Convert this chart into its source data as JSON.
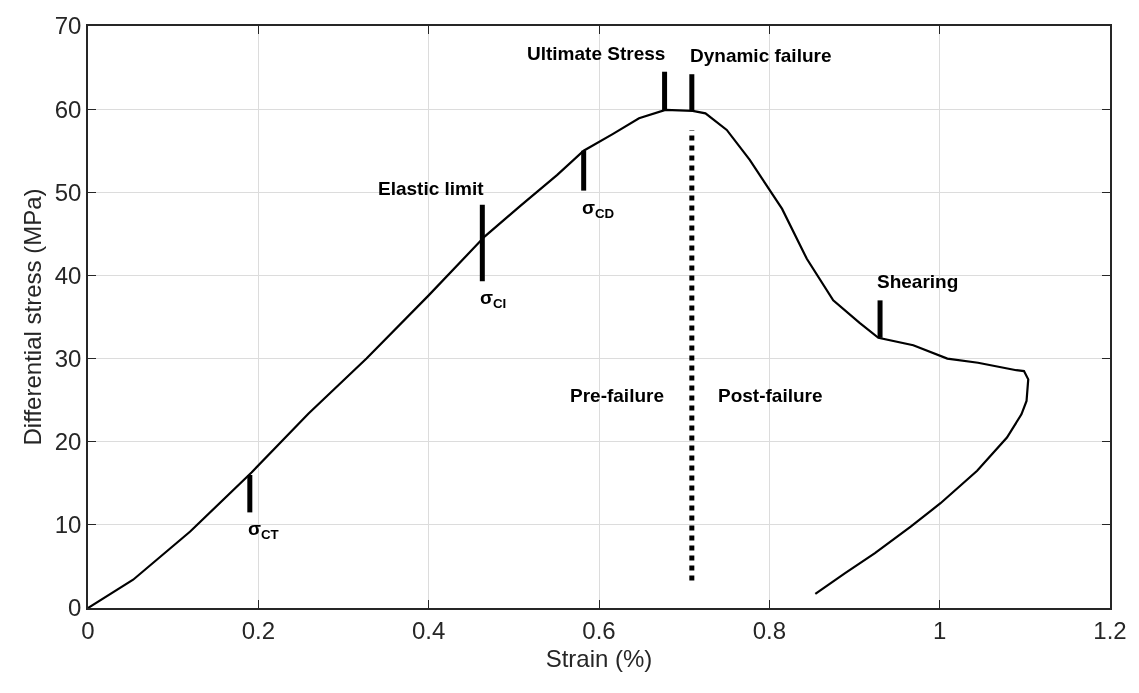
{
  "chart_data": {
    "type": "line",
    "xlabel": "Strain (%)",
    "ylabel": "Differential stress (MPa)",
    "xlim": [
      0,
      1.2
    ],
    "xticks": [
      0,
      0.2,
      0.4,
      0.6,
      0.8,
      1,
      1.2
    ],
    "ylim": [
      0,
      70
    ],
    "yticks": [
      0,
      10,
      20,
      30,
      40,
      50,
      60,
      70
    ],
    "grid": true,
    "marker": "none",
    "series": [
      {
        "color": "#000000",
        "line_style": "solid",
        "x": [
          0,
          0.053,
          0.12,
          0.192,
          0.259,
          0.327,
          0.4,
          0.466,
          0.508,
          0.551,
          0.582,
          0.616,
          0.647,
          0.678,
          0.71,
          0.725,
          0.75,
          0.777,
          0.815,
          0.844,
          0.875,
          0.906,
          0.928,
          0.969,
          1.009,
          1.045,
          1.09,
          1.099,
          1.104,
          1.102,
          1.096,
          1.079,
          1.044,
          1.001,
          0.966,
          0.924,
          0.889,
          0.854
        ],
        "values": [
          0,
          3.4,
          9.2,
          16.3,
          23.4,
          30,
          37.6,
          44.7,
          48.4,
          52.1,
          55,
          57,
          58.9,
          59.9,
          59.8,
          59.5,
          57.5,
          53.9,
          48,
          42,
          37,
          34.3,
          32.5,
          31.6,
          30,
          29.5,
          28.6,
          28.5,
          27.5,
          24.9,
          23.3,
          20.5,
          16.5,
          12.6,
          9.8,
          6.6,
          4.2,
          1.7
        ]
      },
      {
        "color": "#000000",
        "line_style": "dotted",
        "x": [
          0.709,
          0.709
        ],
        "values": [
          3.3,
          57.5
        ]
      },
      {
        "color": "#000000",
        "line_style": "solid",
        "x": [
          0.19,
          0.19
        ],
        "values": [
          11.5,
          16
        ]
      },
      {
        "color": "#000000",
        "line_style": "solid",
        "x": [
          0.463,
          0.463
        ],
        "values": [
          39.3,
          48.5
        ]
      },
      {
        "color": "#000000",
        "line_style": "solid",
        "x": [
          0.582,
          0.582
        ],
        "values": [
          50.2,
          55
        ]
      },
      {
        "color": "#000000",
        "line_style": "solid",
        "x": [
          0.677,
          0.677
        ],
        "values": [
          59.9,
          64.5
        ]
      },
      {
        "color": "#000000",
        "line_style": "solid",
        "x": [
          0.709,
          0.709
        ],
        "values": [
          59.8,
          64.2
        ]
      },
      {
        "color": "#000000",
        "line_style": "solid",
        "x": [
          0.93,
          0.93
        ],
        "values": [
          32.5,
          37
        ]
      }
    ],
    "annotations": [
      {
        "text": "σ$_{CT}$",
        "x": 0.19,
        "y": 11.5
      },
      {
        "text": "σ$_{CI}$",
        "x": 0.463,
        "y": 39.3
      },
      {
        "text": "σ$_{CD}$",
        "x": 0.582,
        "y": 50.2
      },
      {
        "text": "Elastic limit",
        "x": 0.463,
        "y": 48.5
      },
      {
        "text": "Ultimate Stress",
        "x": 0.677,
        "y": 64.5
      },
      {
        "text": "Dynamic failure",
        "x": 0.709,
        "y": 64.2
      },
      {
        "text": "Shearing",
        "x": 0.93,
        "y": 37
      },
      {
        "text": "Pre-failure",
        "x": 0.709,
        "y": 25.5
      },
      {
        "text": "Post-failure",
        "x": 0.709,
        "y": 25.5
      }
    ]
  }
}
